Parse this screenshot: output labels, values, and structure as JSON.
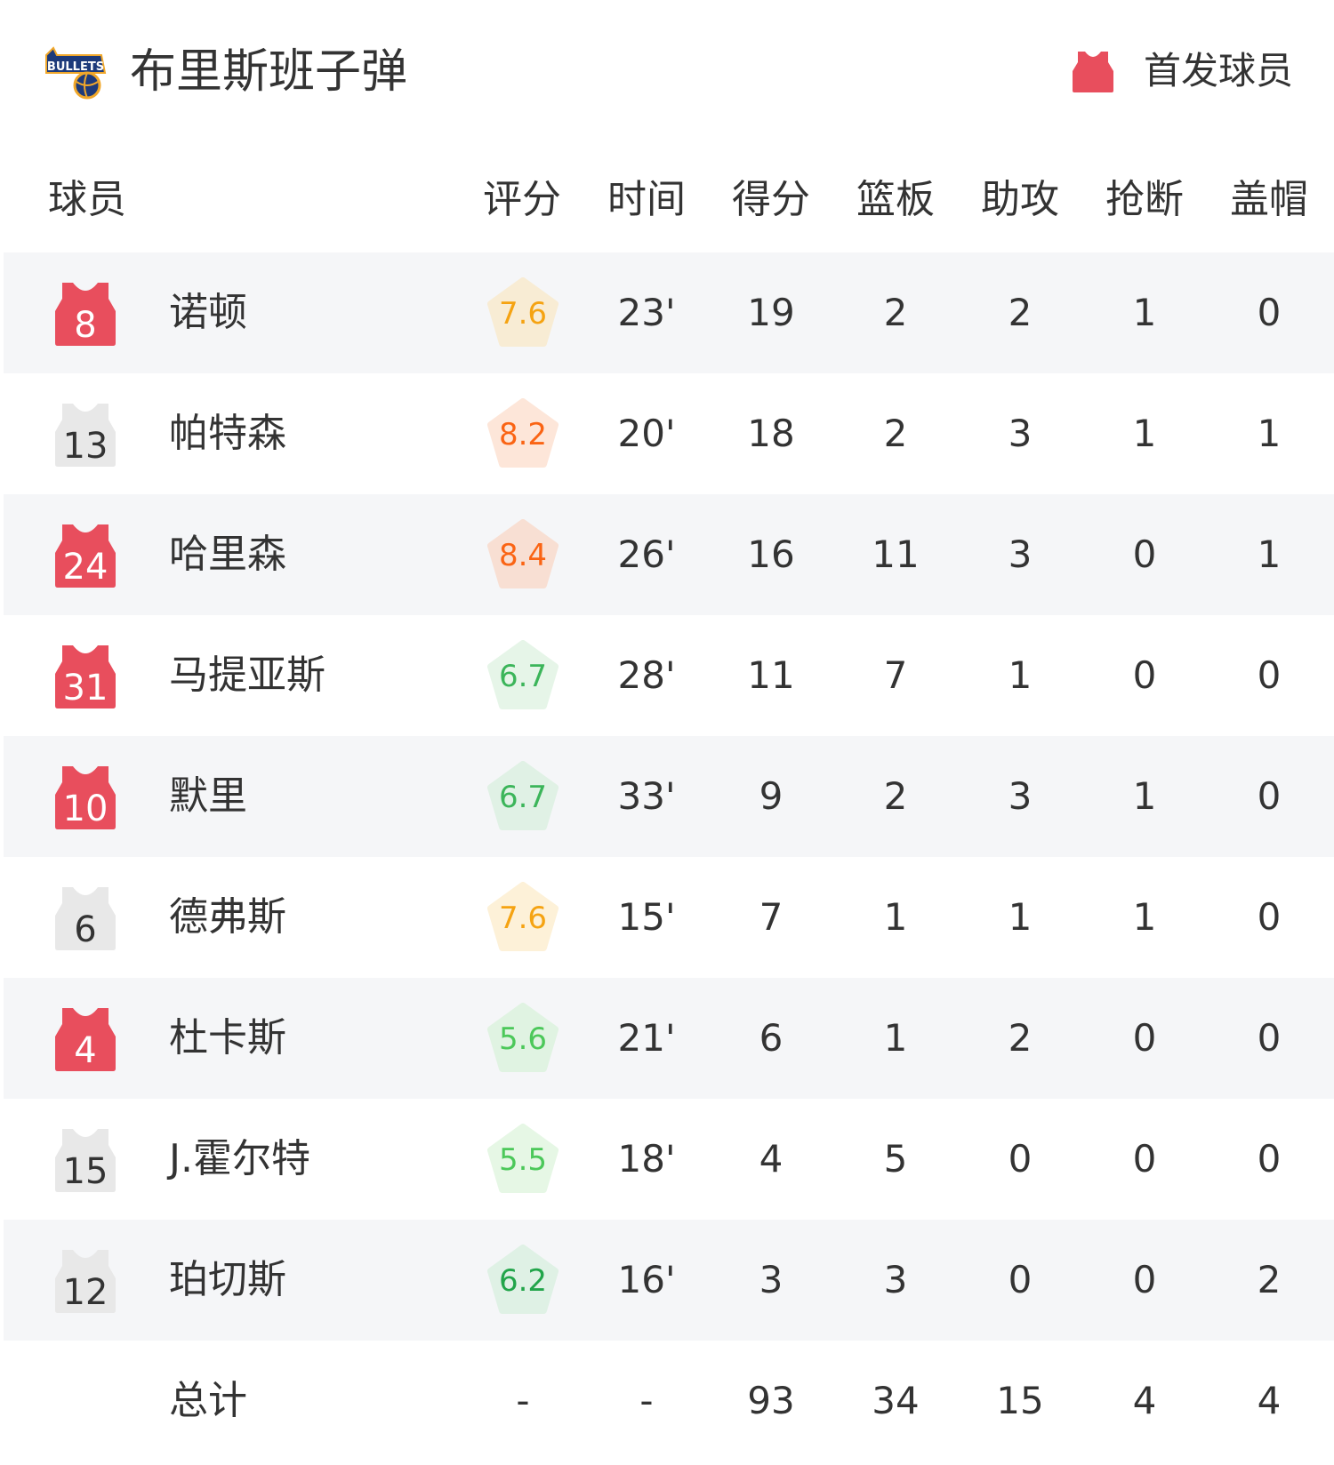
{
  "team": {
    "name": "布里斯班子弹",
    "logo_text": "BRISBANE BULLETS"
  },
  "legend": {
    "label": "首发球员",
    "icon": "jersey-icon",
    "color": "#e84e5d"
  },
  "columns": [
    "球员",
    "评分",
    "时间",
    "得分",
    "篮板",
    "助攻",
    "抢断",
    "盖帽"
  ],
  "colors": {
    "starter": "#e84e5d",
    "bench": "#e8e8e8",
    "row_alt": "#f5f6f8"
  },
  "players": [
    {
      "number": "8",
      "name": "诺顿",
      "starter": true,
      "rating": "7.6",
      "rating_color": "#f5a312",
      "rating_bg": "#f8ecd4",
      "min": "23'",
      "pts": "19",
      "reb": "2",
      "ast": "2",
      "stl": "1",
      "blk": "0"
    },
    {
      "number": "13",
      "name": "帕特森",
      "starter": false,
      "rating": "8.2",
      "rating_color": "#fa6414",
      "rating_bg": "#fde6d9",
      "min": "20'",
      "pts": "18",
      "reb": "2",
      "ast": "3",
      "stl": "1",
      "blk": "1"
    },
    {
      "number": "24",
      "name": "哈里森",
      "starter": true,
      "rating": "8.4",
      "rating_color": "#fa6414",
      "rating_bg": "#f8dfd3",
      "min": "26'",
      "pts": "16",
      "reb": "11",
      "ast": "3",
      "stl": "0",
      "blk": "1"
    },
    {
      "number": "31",
      "name": "马提亚斯",
      "starter": true,
      "rating": "6.7",
      "rating_color": "#3cb55a",
      "rating_bg": "#e6f5e8",
      "min": "28'",
      "pts": "11",
      "reb": "7",
      "ast": "1",
      "stl": "0",
      "blk": "0"
    },
    {
      "number": "10",
      "name": "默里",
      "starter": true,
      "rating": "6.7",
      "rating_color": "#3cb55a",
      "rating_bg": "#e0f1e5",
      "min": "33'",
      "pts": "9",
      "reb": "2",
      "ast": "3",
      "stl": "1",
      "blk": "0"
    },
    {
      "number": "6",
      "name": "德弗斯",
      "starter": false,
      "rating": "7.6",
      "rating_color": "#f5a312",
      "rating_bg": "#fdf1d8",
      "min": "15'",
      "pts": "7",
      "reb": "1",
      "ast": "1",
      "stl": "1",
      "blk": "0"
    },
    {
      "number": "4",
      "name": "杜卡斯",
      "starter": true,
      "rating": "5.6",
      "rating_color": "#4cc85a",
      "rating_bg": "#e0f3e2",
      "min": "21'",
      "pts": "6",
      "reb": "1",
      "ast": "2",
      "stl": "0",
      "blk": "0"
    },
    {
      "number": "15",
      "name": "J.霍尔特",
      "starter": false,
      "rating": "5.5",
      "rating_color": "#4cc85a",
      "rating_bg": "#e6f7e5",
      "min": "18'",
      "pts": "4",
      "reb": "5",
      "ast": "0",
      "stl": "0",
      "blk": "0"
    },
    {
      "number": "12",
      "name": "珀切斯",
      "starter": false,
      "rating": "6.2",
      "rating_color": "#22a54a",
      "rating_bg": "#dff1e5",
      "min": "16'",
      "pts": "3",
      "reb": "3",
      "ast": "0",
      "stl": "0",
      "blk": "2"
    }
  ],
  "total": {
    "name": "总计",
    "rating": "-",
    "min": "-",
    "pts": "93",
    "reb": "34",
    "ast": "15",
    "stl": "4",
    "blk": "4"
  }
}
